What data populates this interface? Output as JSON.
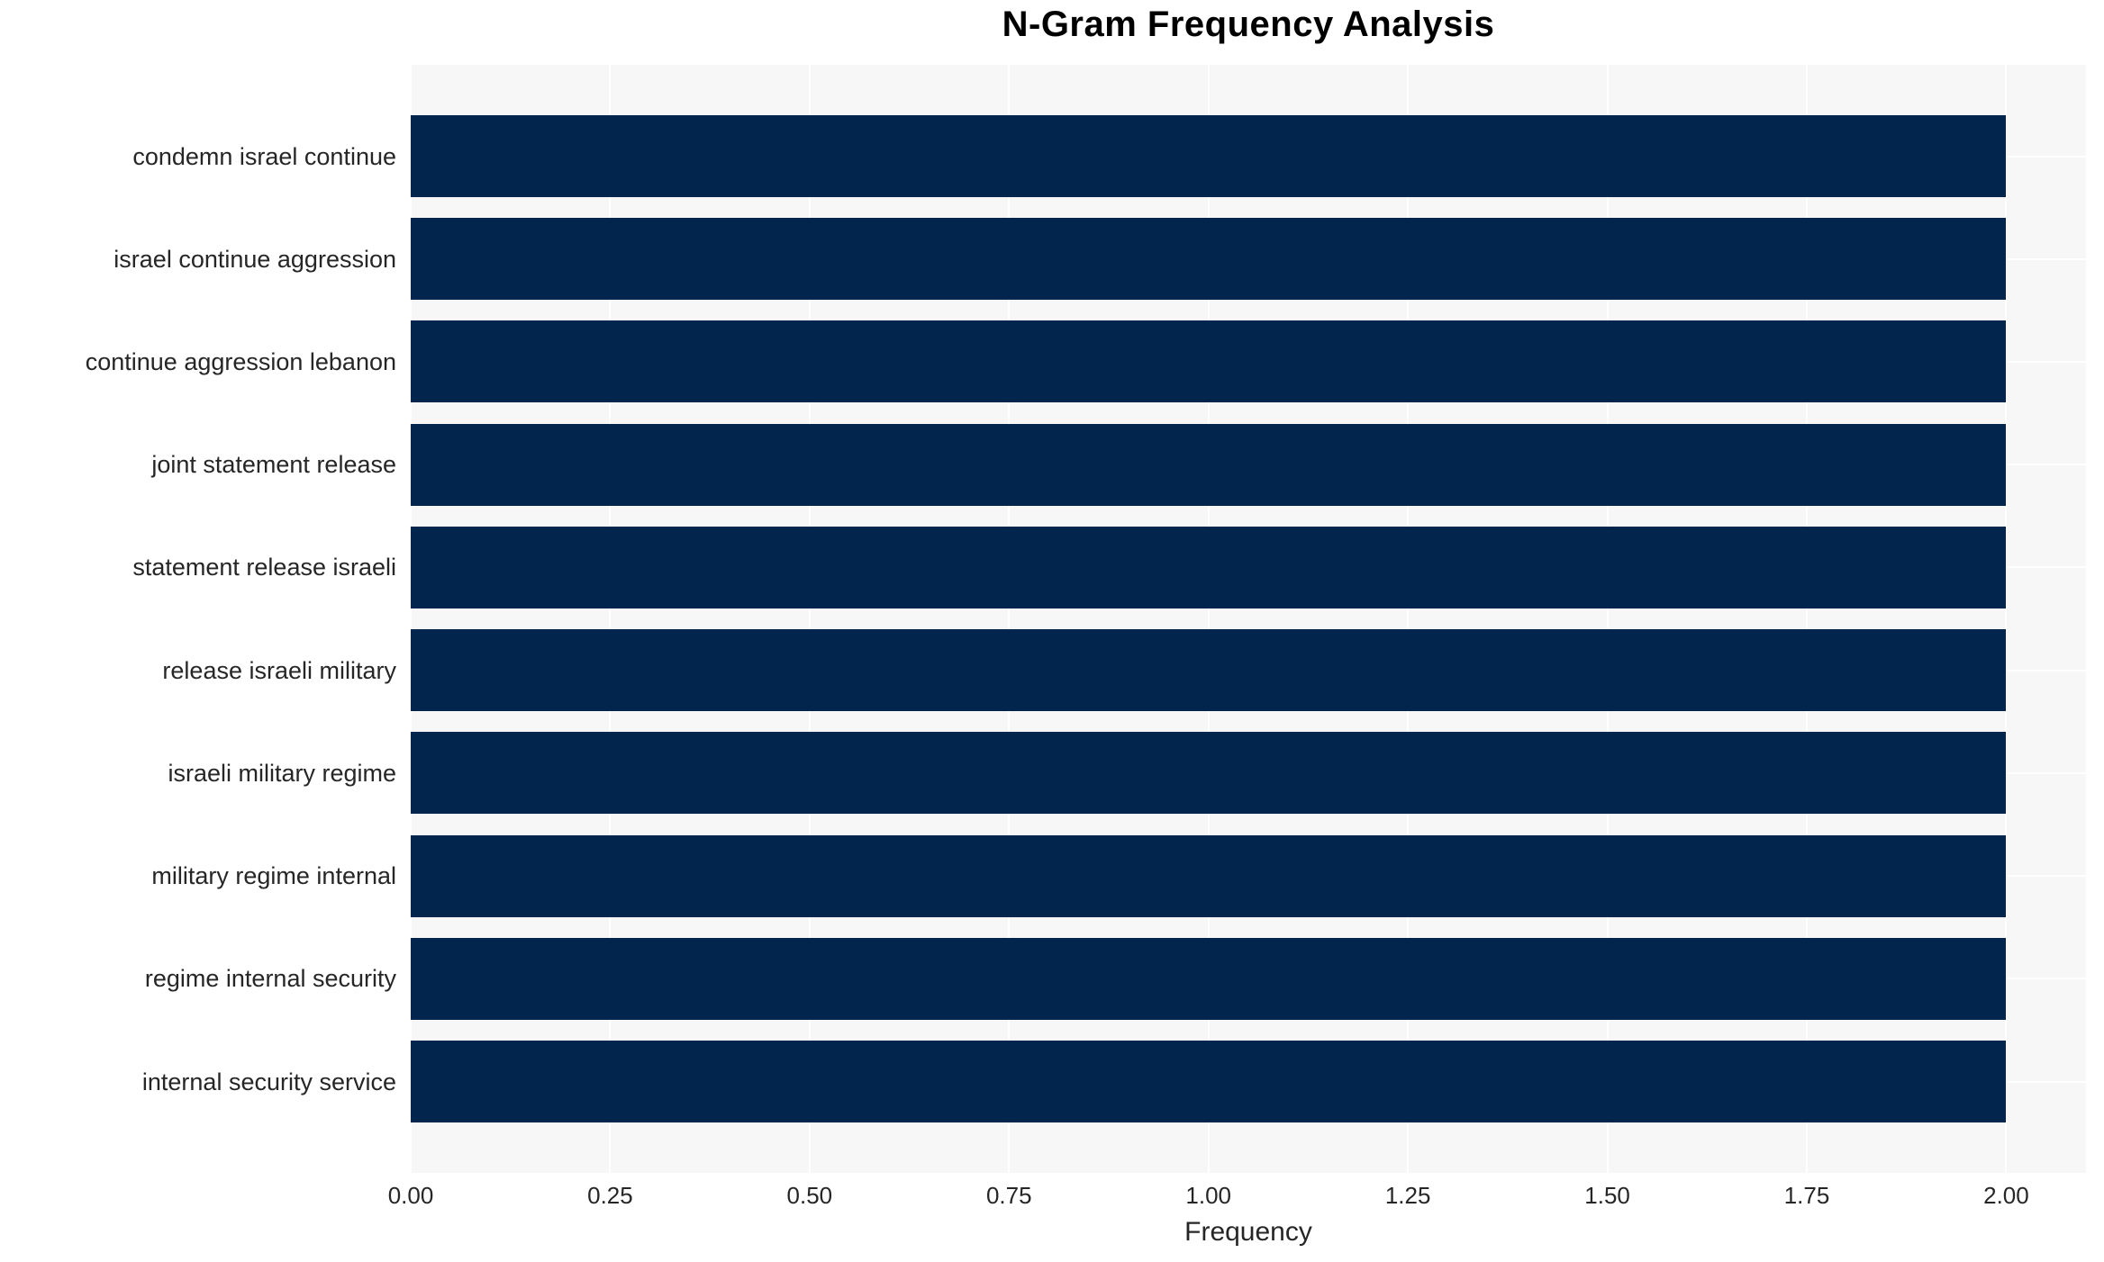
{
  "chart_data": {
    "type": "bar",
    "orientation": "horizontal",
    "title": "N-Gram Frequency Analysis",
    "xlabel": "Frequency",
    "ylabel": "",
    "categories": [
      "condemn israel continue",
      "israel continue aggression",
      "continue aggression lebanon",
      "joint statement release",
      "statement release israeli",
      "release israeli military",
      "israeli military regime",
      "military regime internal",
      "regime internal security",
      "internal security service"
    ],
    "values": [
      2,
      2,
      2,
      2,
      2,
      2,
      2,
      2,
      2,
      2
    ],
    "xlim": [
      0,
      2.1
    ],
    "xticks": [
      0,
      0.25,
      0.5,
      0.75,
      1.0,
      1.25,
      1.5,
      1.75,
      2.0
    ],
    "xtick_labels": [
      "0.00",
      "0.25",
      "0.50",
      "0.75",
      "1.00",
      "1.25",
      "1.50",
      "1.75",
      "2.00"
    ],
    "grid": true,
    "legend": false,
    "colors": {
      "bar": "#02254e",
      "plot_background": "#f7f7f7",
      "gridline": "#ffffff",
      "tick_text": "#262626",
      "title_text": "#000000"
    }
  }
}
